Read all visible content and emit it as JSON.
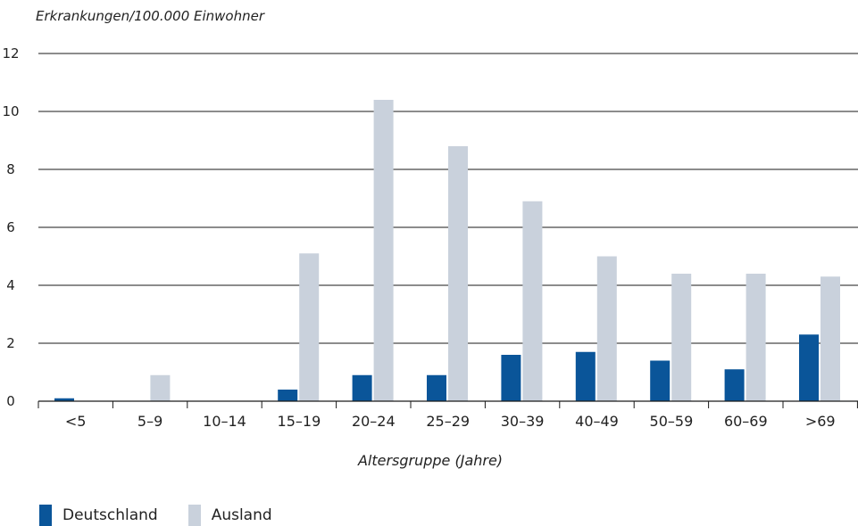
{
  "chart_data": {
    "type": "bar",
    "ylabel": "Erkrankungen/100.000 Einwohner",
    "xlabel": "Altersgruppe (Jahre)",
    "categories": [
      "<5",
      "5–9",
      "10–14",
      "15–19",
      "20–24",
      "25–29",
      "30–39",
      "40–49",
      "50–59",
      "60–69",
      ">69"
    ],
    "series": [
      {
        "name": "Deutschland",
        "color": "#0a5599",
        "values": [
          0.1,
          0,
          0,
          0.4,
          0.9,
          0.9,
          1.6,
          1.7,
          1.4,
          1.1,
          2.3
        ]
      },
      {
        "name": "Ausland",
        "color": "#c9d1dc",
        "values": [
          0,
          0.9,
          0,
          5.1,
          10.4,
          8.8,
          6.9,
          5.0,
          4.4,
          4.4,
          4.3
        ]
      }
    ],
    "ylim": [
      0,
      12
    ],
    "yticks": [
      "0",
      "2",
      "4",
      "6",
      "8",
      "10",
      "12"
    ],
    "grid": true,
    "legend_position": "bottom-left"
  }
}
